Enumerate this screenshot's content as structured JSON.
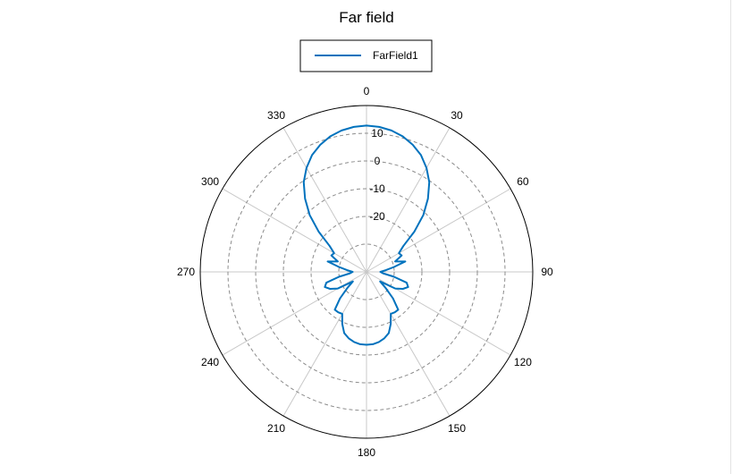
{
  "chart_data": {
    "type": "polar-line",
    "title": "Far field",
    "legend": {
      "position": "top-center",
      "entries": [
        "FarField1"
      ]
    },
    "angle_ticks": [
      "0",
      "30",
      "60",
      "90",
      "120",
      "150",
      "180",
      "210",
      "240",
      "270",
      "300",
      "330"
    ],
    "angle_direction": "clockwise",
    "zero_location": "top",
    "radial_ticks": [
      "-20",
      "-10",
      "0",
      "10"
    ],
    "radial_range": [
      -40,
      20
    ],
    "grid": true,
    "series": [
      {
        "name": "FarField1",
        "color": "#0072bd",
        "theta": [
          0,
          5,
          10,
          15,
          20,
          25,
          30,
          35,
          40,
          45,
          50,
          55,
          60,
          65,
          70,
          75,
          80,
          85,
          90,
          95,
          100,
          105,
          110,
          115,
          120,
          125,
          130,
          135,
          140,
          145,
          150,
          155,
          160,
          165,
          170,
          175,
          180,
          185,
          190,
          195,
          200,
          205,
          210,
          215,
          220,
          225,
          230,
          235,
          240,
          245,
          250,
          255,
          260,
          265,
          270,
          275,
          280,
          285,
          290,
          295,
          300,
          305,
          310,
          315,
          320,
          325,
          330,
          335,
          340,
          345,
          350,
          355
        ],
        "r": [
          12.8,
          12.5,
          11.8,
          10.6,
          8.8,
          6.5,
          3.3,
          -0.5,
          -5.5,
          -11.0,
          -17.5,
          -23.8,
          -26.5,
          -26.0,
          -29.0,
          -25.5,
          -30.0,
          -33.0,
          -35.0,
          -34.0,
          -30.0,
          -25.0,
          -24.0,
          -25.5,
          -28.0,
          -34.0,
          -31.0,
          -26.5,
          -22.2,
          -22.2,
          -22.5,
          -19.3,
          -16.5,
          -15.2,
          -14.3,
          -13.8,
          -13.7,
          -13.8,
          -14.3,
          -15.2,
          -16.5,
          -19.3,
          -22.5,
          -22.2,
          -22.2,
          -26.5,
          -31.0,
          -34.0,
          -28.0,
          -25.5,
          -24.0,
          -25.0,
          -30.0,
          -34.0,
          -35.0,
          -33.0,
          -30.0,
          -25.5,
          -29.0,
          -26.0,
          -26.5,
          -23.8,
          -17.5,
          -11.0,
          -5.5,
          -0.5,
          3.3,
          6.5,
          8.8,
          10.6,
          11.8,
          12.5
        ]
      }
    ]
  }
}
